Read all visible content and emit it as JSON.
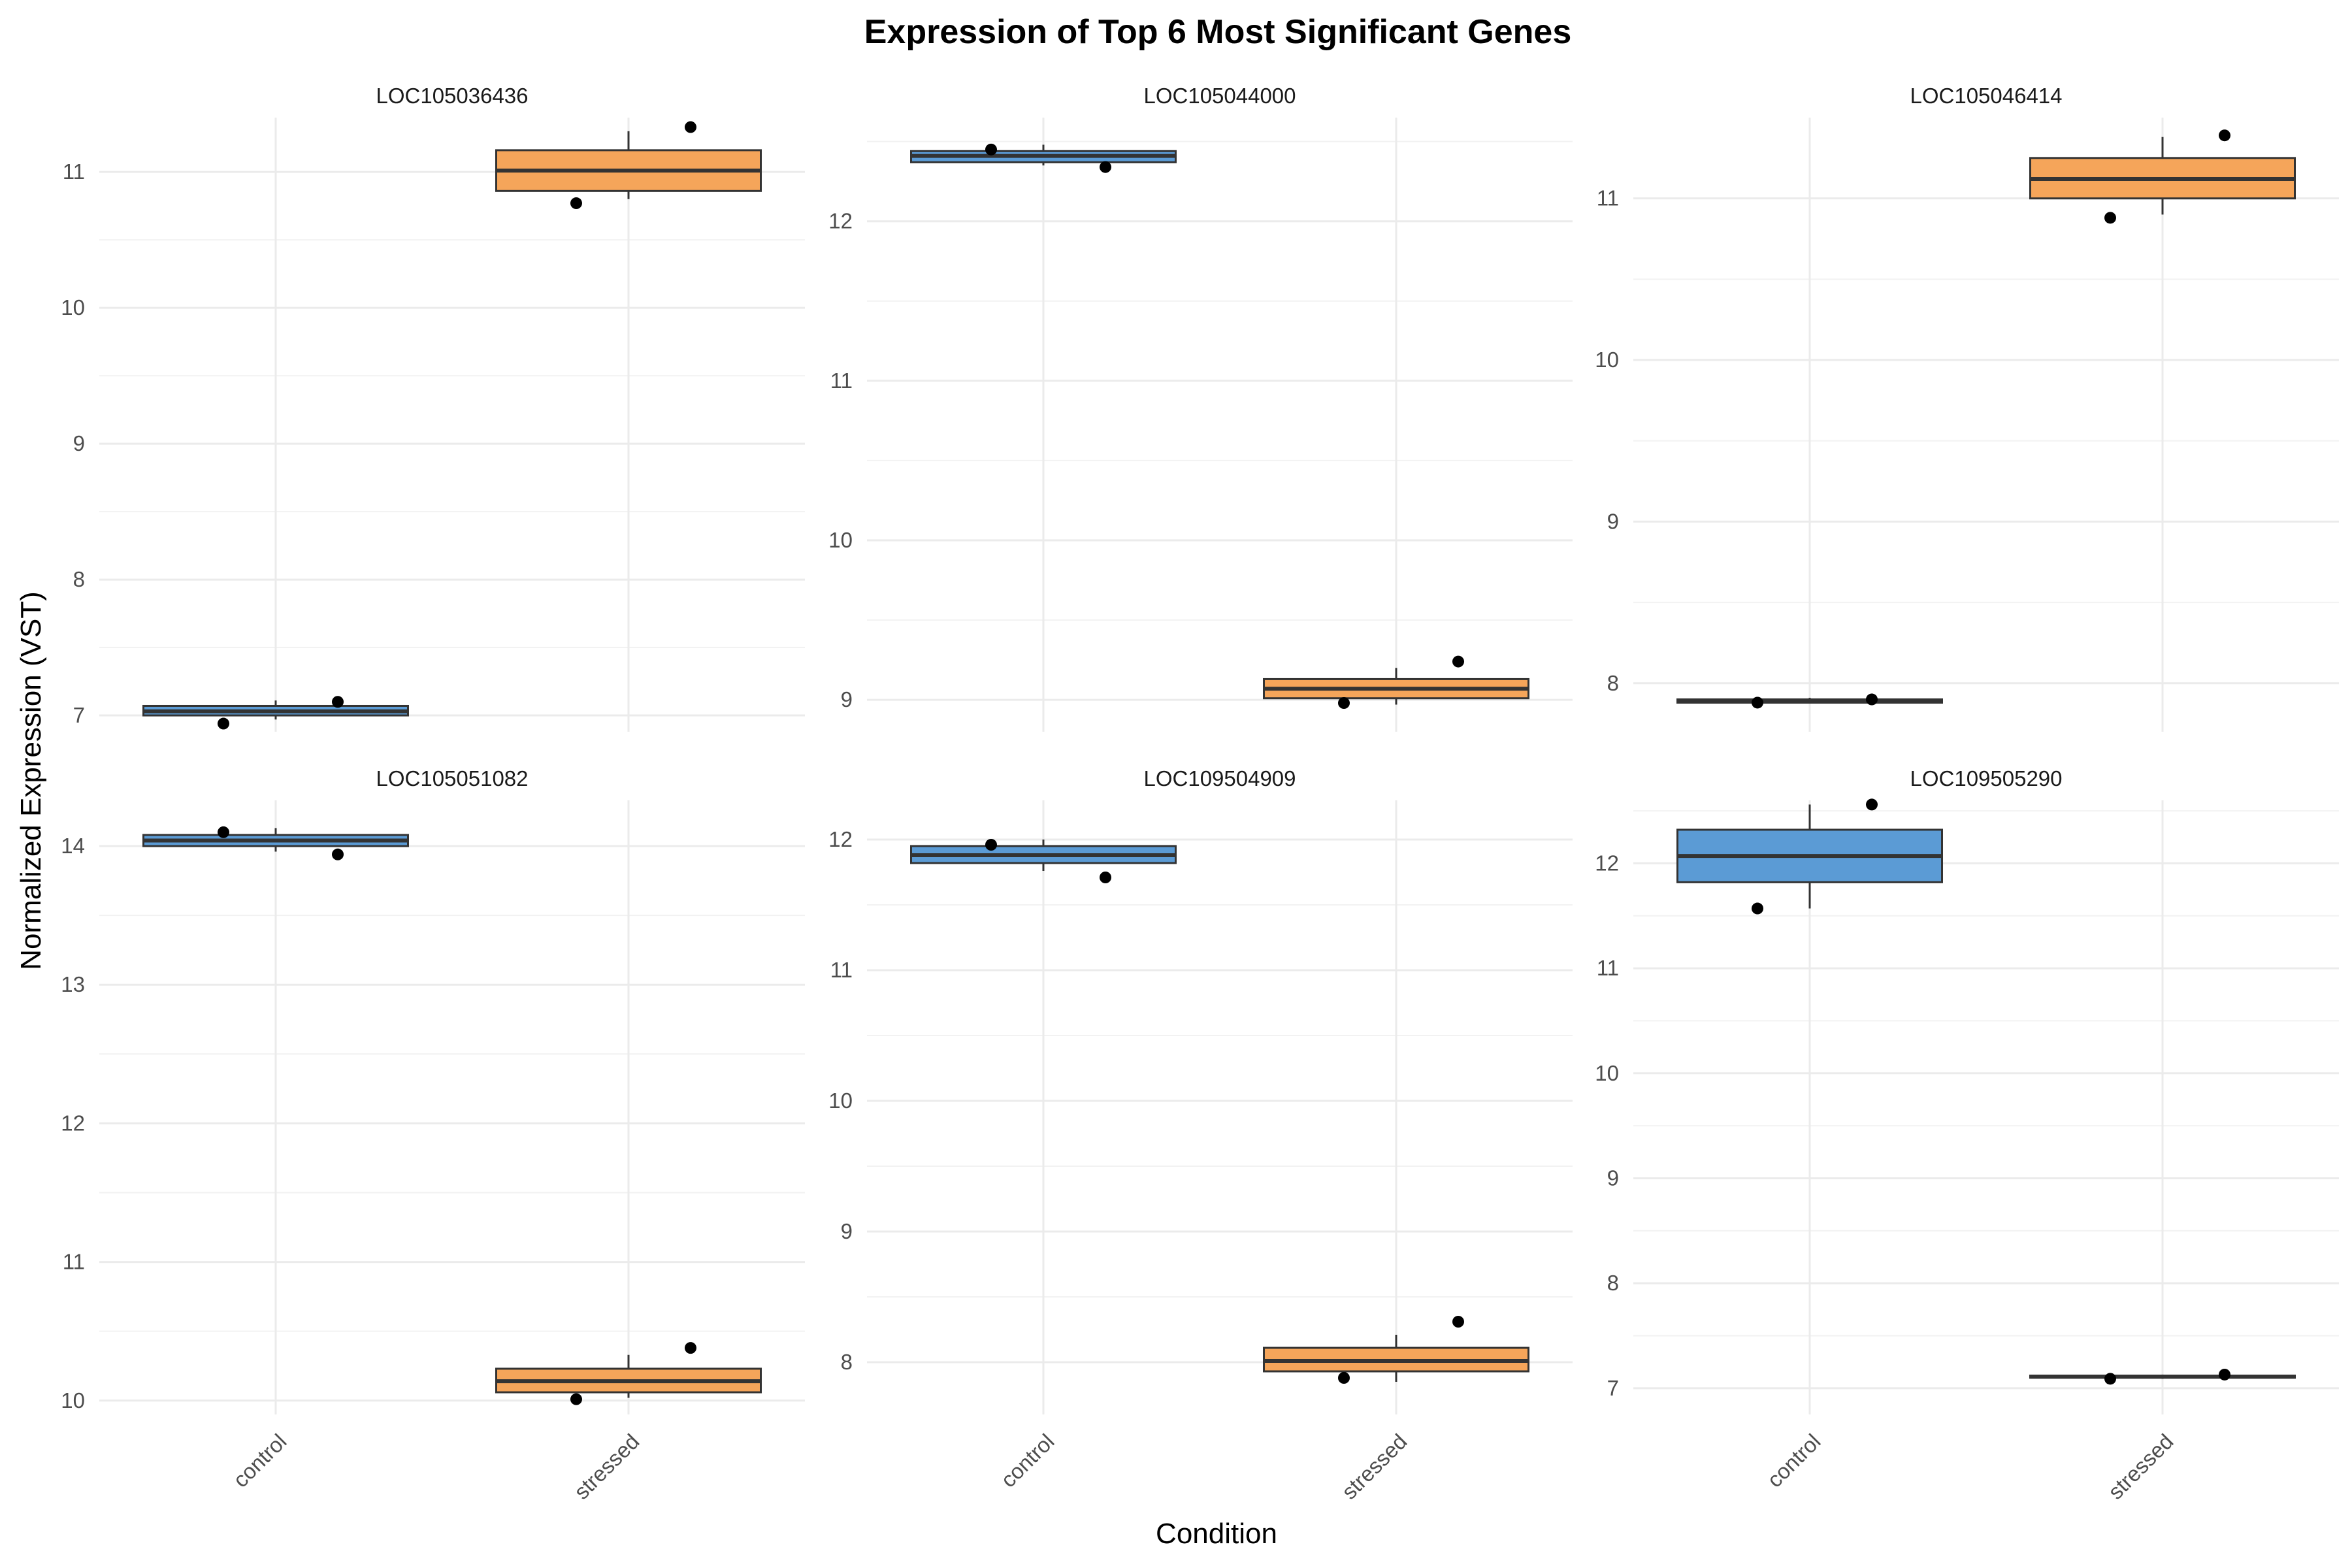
{
  "chart_data": {
    "type": "box",
    "title": "Expression of Top 6 Most Significant Genes",
    "xlabel": "Condition",
    "ylabel": "Normalized Expression (VST)",
    "categories": [
      "control",
      "stressed"
    ],
    "colors": {
      "control": "#5B9BD5",
      "stressed": "#F5A55A"
    },
    "grid": true,
    "panels": [
      {
        "gene": "LOC105036436",
        "ylim": [
          6.88,
          11.4
        ],
        "yticks": [
          7,
          8,
          9,
          10,
          11
        ],
        "boxes": [
          {
            "condition": "control",
            "min": 6.97,
            "q1": 7.0,
            "median": 7.03,
            "q3": 7.07,
            "max": 7.11,
            "points": [
              6.94,
              7.1
            ]
          },
          {
            "condition": "stressed",
            "min": 10.8,
            "q1": 10.86,
            "median": 11.01,
            "q3": 11.16,
            "max": 11.3,
            "points": [
              10.77,
              11.33
            ]
          }
        ]
      },
      {
        "gene": "LOC105044000",
        "ylim": [
          8.8,
          12.65
        ],
        "yticks": [
          9,
          10,
          11,
          12
        ],
        "boxes": [
          {
            "condition": "control",
            "min": 12.35,
            "q1": 12.37,
            "median": 12.41,
            "q3": 12.44,
            "max": 12.48,
            "points": [
              12.45,
              12.34
            ]
          },
          {
            "condition": "stressed",
            "min": 8.97,
            "q1": 9.01,
            "median": 9.07,
            "q3": 9.13,
            "max": 9.2,
            "points": [
              8.98,
              9.24
            ]
          }
        ]
      },
      {
        "gene": "LOC105046414",
        "ylim": [
          7.7,
          11.5
        ],
        "yticks": [
          8,
          9,
          10,
          11
        ],
        "boxes": [
          {
            "condition": "control",
            "min": 7.88,
            "q1": 7.88,
            "median": 7.89,
            "q3": 7.9,
            "max": 7.91,
            "points": [
              7.88,
              7.9
            ]
          },
          {
            "condition": "stressed",
            "min": 10.9,
            "q1": 11.0,
            "median": 11.12,
            "q3": 11.25,
            "max": 11.38,
            "points": [
              10.88,
              11.39
            ]
          }
        ]
      },
      {
        "gene": "LOC105051082",
        "ylim": [
          9.9,
          14.33
        ],
        "yticks": [
          10,
          11,
          12,
          13,
          14
        ],
        "boxes": [
          {
            "condition": "control",
            "min": 13.96,
            "q1": 14.0,
            "median": 14.04,
            "q3": 14.08,
            "max": 14.13,
            "points": [
              14.1,
              13.94
            ]
          },
          {
            "condition": "stressed",
            "min": 10.02,
            "q1": 10.06,
            "median": 10.14,
            "q3": 10.23,
            "max": 10.33,
            "points": [
              10.01,
              10.38
            ]
          }
        ]
      },
      {
        "gene": "LOC109504909",
        "ylim": [
          7.6,
          12.3
        ],
        "yticks": [
          8,
          9,
          10,
          11,
          12
        ],
        "boxes": [
          {
            "condition": "control",
            "min": 11.76,
            "q1": 11.82,
            "median": 11.88,
            "q3": 11.95,
            "max": 12.0,
            "points": [
              11.96,
              11.71
            ]
          },
          {
            "condition": "stressed",
            "min": 7.85,
            "q1": 7.93,
            "median": 8.01,
            "q3": 8.11,
            "max": 8.21,
            "points": [
              7.88,
              8.31
            ]
          }
        ]
      },
      {
        "gene": "LOC109505290",
        "ylim": [
          6.75,
          12.6
        ],
        "yticks": [
          7,
          8,
          9,
          10,
          11,
          12
        ],
        "boxes": [
          {
            "condition": "control",
            "min": 11.57,
            "q1": 11.82,
            "median": 12.07,
            "q3": 12.32,
            "max": 12.56,
            "points": [
              11.57,
              12.56
            ]
          },
          {
            "condition": "stressed",
            "min": 7.09,
            "q1": 7.1,
            "median": 7.11,
            "q3": 7.12,
            "max": 7.13,
            "points": [
              7.09,
              7.13
            ]
          }
        ]
      }
    ]
  }
}
